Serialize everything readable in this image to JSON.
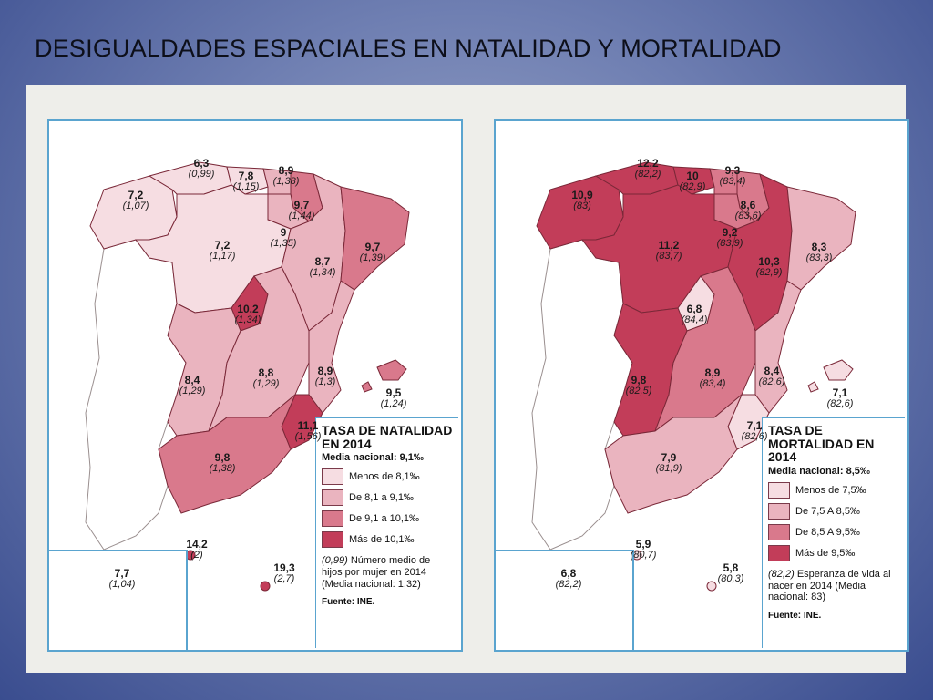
{
  "slide": {
    "title": "DESIGUALDADES ESPACIALES EN NATALIDAD Y MORTALIDAD"
  },
  "colors": {
    "slide_bg": "#6f7fb2",
    "page_bg": "#eeeeea",
    "panel_border": "#5aa4cf",
    "class1": "#f6dde2",
    "class2": "#eab4bf",
    "class3": "#d9798c",
    "class4": "#c23d59",
    "portugal": "#ffffff"
  },
  "natalidad": {
    "legend": {
      "title": "TASA DE NATALIDAD EN 2014",
      "media": "Media nacional: 9,1‰",
      "classes": [
        "Menos de 8,1‰",
        "De 8,1 a 9,1‰",
        "De 9,1 a 10,1‰",
        "Más de 10,1‰"
      ],
      "note_value": "(0,99)",
      "note": "Número medio de hijos por mujer en 2014 (Media nacional: 1,32)",
      "source": "Fuente: INE."
    },
    "regions": [
      {
        "name": "galicia",
        "v": "7,2",
        "s": "(1,07)",
        "c": 1
      },
      {
        "name": "asturias",
        "v": "6,3",
        "s": "(0,99)",
        "c": 1
      },
      {
        "name": "cantabria",
        "v": "7,8",
        "s": "(1,15)",
        "c": 1
      },
      {
        "name": "pais-vasco",
        "v": "8,9",
        "s": "(1,38)",
        "c": 2
      },
      {
        "name": "navarra",
        "v": "9,7",
        "s": "(1,44)",
        "c": 3
      },
      {
        "name": "la-rioja",
        "v": "9",
        "s": "(1,35)",
        "c": 2
      },
      {
        "name": "castilla-leon",
        "v": "7,2",
        "s": "(1,17)",
        "c": 1
      },
      {
        "name": "aragon",
        "v": "8,7",
        "s": "(1,34)",
        "c": 2
      },
      {
        "name": "cataluna",
        "v": "9,7",
        "s": "(1,39)",
        "c": 3
      },
      {
        "name": "madrid",
        "v": "10,2",
        "s": "(1,34)",
        "c": 4
      },
      {
        "name": "extremadura",
        "v": "8,4",
        "s": "(1,29)",
        "c": 2
      },
      {
        "name": "castilla-la-mancha",
        "v": "8,8",
        "s": "(1,29)",
        "c": 2
      },
      {
        "name": "valencia",
        "v": "8,9",
        "s": "(1,3)",
        "c": 2
      },
      {
        "name": "baleares",
        "v": "9,5",
        "s": "(1,24)",
        "c": 3
      },
      {
        "name": "murcia",
        "v": "11,1",
        "s": "(1,56)",
        "c": 4
      },
      {
        "name": "andalucia",
        "v": "9,8",
        "s": "(1,38)",
        "c": 3
      },
      {
        "name": "ceuta",
        "v": "14,2",
        "s": "(2)",
        "c": 4
      },
      {
        "name": "melilla",
        "v": "19,3",
        "s": "(2,7)",
        "c": 4
      },
      {
        "name": "canarias",
        "v": "7,7",
        "s": "(1,04)",
        "c": 1
      }
    ]
  },
  "mortalidad": {
    "legend": {
      "title": "TASA DE MORTALIDAD EN 2014",
      "media": "Media nacional: 8,5‰",
      "classes": [
        "Menos de 7,5‰",
        "De 7,5 A 8,5‰",
        "De 8,5 A 9,5‰",
        "Más de 9,5‰"
      ],
      "note_value": "(82,2)",
      "note": "Esperanza de vida al nacer en 2014 (Media nacional: 83)",
      "source": "Fuente: INE."
    },
    "regions": [
      {
        "name": "galicia",
        "v": "10,9",
        "s": "(83)",
        "c": 4
      },
      {
        "name": "asturias",
        "v": "12,2",
        "s": "(82,2)",
        "c": 4
      },
      {
        "name": "cantabria",
        "v": "10",
        "s": "(82,9)",
        "c": 4
      },
      {
        "name": "pais-vasco",
        "v": "9,3",
        "s": "(83,4)",
        "c": 3
      },
      {
        "name": "navarra",
        "v": "8,6",
        "s": "(83,6)",
        "c": 3
      },
      {
        "name": "la-rioja",
        "v": "9,2",
        "s": "(83,9)",
        "c": 3
      },
      {
        "name": "castilla-leon",
        "v": "11,2",
        "s": "(83,7)",
        "c": 4
      },
      {
        "name": "aragon",
        "v": "10,3",
        "s": "(82,9)",
        "c": 4
      },
      {
        "name": "cataluna",
        "v": "8,3",
        "s": "(83,3)",
        "c": 2
      },
      {
        "name": "madrid",
        "v": "6,8",
        "s": "(84,4)",
        "c": 1
      },
      {
        "name": "extremadura",
        "v": "9,8",
        "s": "(82,5)",
        "c": 4
      },
      {
        "name": "castilla-la-mancha",
        "v": "8,9",
        "s": "(83,4)",
        "c": 3
      },
      {
        "name": "valencia",
        "v": "8,4",
        "s": "(82,6)",
        "c": 2
      },
      {
        "name": "baleares",
        "v": "7,1",
        "s": "(82,6)",
        "c": 1
      },
      {
        "name": "murcia",
        "v": "7,1",
        "s": "(82,6)",
        "c": 1
      },
      {
        "name": "andalucia",
        "v": "7,9",
        "s": "(81,9)",
        "c": 2
      },
      {
        "name": "ceuta",
        "v": "5,9",
        "s": "(80,7)",
        "c": 1
      },
      {
        "name": "melilla",
        "v": "5,8",
        "s": "(80,3)",
        "c": 1
      },
      {
        "name": "canarias",
        "v": "6,8",
        "s": "(82,2)",
        "c": 1
      }
    ]
  }
}
